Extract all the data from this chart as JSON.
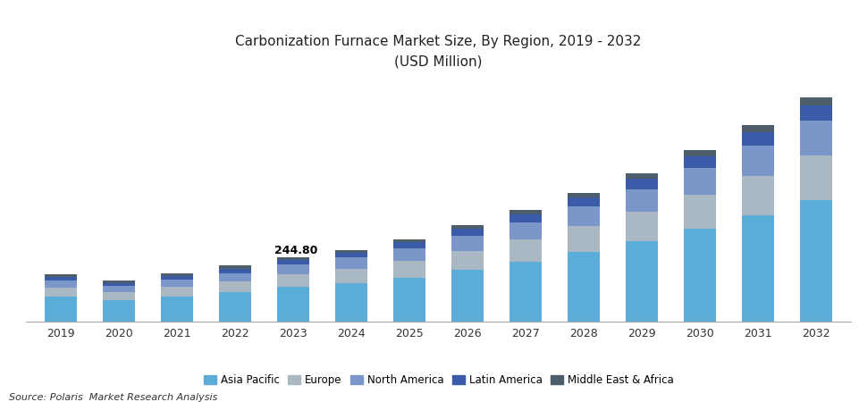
{
  "years": [
    2019,
    2020,
    2021,
    2022,
    2023,
    2024,
    2025,
    2026,
    2027,
    2028,
    2029,
    2030,
    2031,
    2032
  ],
  "segments": {
    "Asia Pacific": [
      95,
      82,
      97,
      112,
      133,
      148,
      168,
      197,
      228,
      265,
      305,
      355,
      405,
      462
    ],
    "Europe": [
      35,
      30,
      35,
      40,
      48,
      54,
      63,
      73,
      85,
      98,
      113,
      130,
      150,
      172
    ],
    "North America": [
      28,
      24,
      28,
      33,
      38,
      43,
      50,
      57,
      66,
      76,
      88,
      100,
      115,
      132
    ],
    "Latin America": [
      14,
      12,
      14,
      16,
      17,
      19,
      22,
      26,
      30,
      34,
      39,
      45,
      52,
      59
    ],
    "Middle East & Africa": [
      10,
      9,
      10,
      12,
      9,
      10,
      12,
      14,
      16,
      18,
      21,
      24,
      27,
      31
    ]
  },
  "annotation_year": 2023,
  "annotation_value": "244.80",
  "colors": {
    "Asia Pacific": "#5BACD6",
    "Europe": "#A9B8C2",
    "North America": "#7B96C9",
    "Latin America": "#3A5BA8",
    "Middle East & Africa": "#4D5E6A"
  },
  "title_line1": "Carbonization Furnace Market Size, By Region, 2019 - 2032",
  "title_line2": "(USD Million)",
  "source_text": "Source: Polaris  Market Research Analysis",
  "legend_order": [
    "Asia Pacific",
    "Europe",
    "North America",
    "Latin America",
    "Middle East & Africa"
  ],
  "background_color": "#FFFFFF",
  "bar_width": 0.55,
  "ylim_max": 920
}
